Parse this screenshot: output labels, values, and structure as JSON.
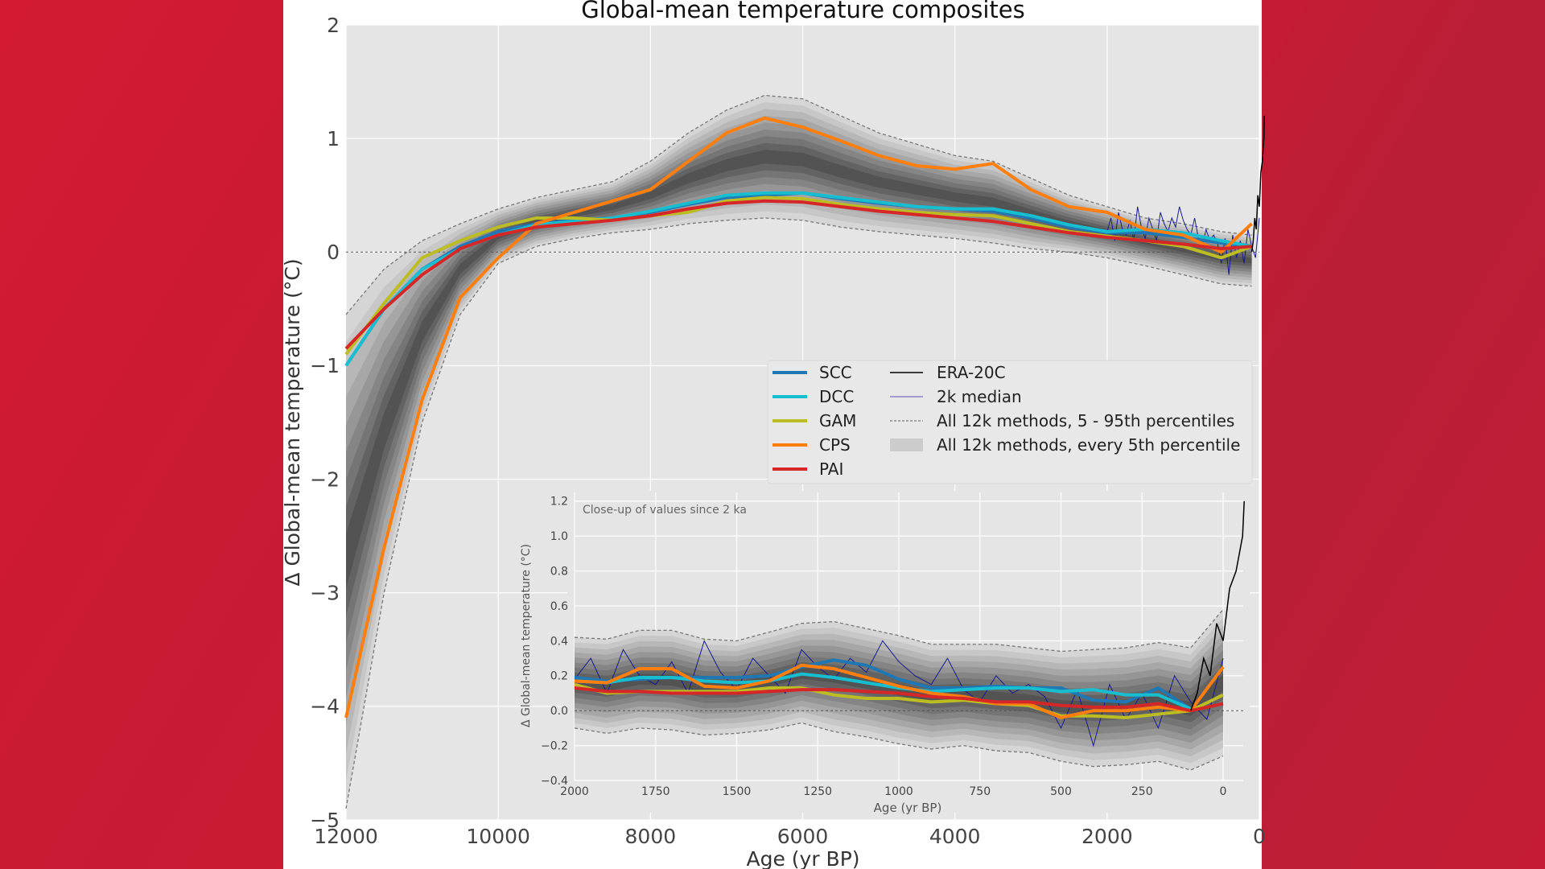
{
  "chart_data": [
    {
      "type": "line",
      "title": "Global-mean temperature composites",
      "xlabel": "Age (yr BP)",
      "ylabel": "Δ Global-mean temperature (°C)",
      "xlim": [
        12000,
        0
      ],
      "ylim": [
        -5,
        2
      ],
      "grid": true,
      "legend_position": "center-right",
      "x_ticks": [
        "12000",
        "10000",
        "8000",
        "6000",
        "4000",
        "2000",
        "0"
      ],
      "y_ticks": [
        "2",
        "1",
        "0",
        "−1",
        "−2",
        "−3",
        "−4",
        "−5"
      ],
      "x": [
        12000,
        11500,
        11000,
        10500,
        10000,
        9500,
        9000,
        8500,
        8000,
        7500,
        7000,
        6500,
        6000,
        5500,
        5000,
        4500,
        4000,
        3500,
        3000,
        2500,
        2000,
        1500,
        1000,
        500,
        100
      ],
      "series": [
        {
          "name": "SCC",
          "color": "#1f77b4",
          "values": [
            -1.0,
            -0.5,
            -0.15,
            0.05,
            0.18,
            0.25,
            0.28,
            0.3,
            0.35,
            0.42,
            0.48,
            0.5,
            0.52,
            0.47,
            0.43,
            0.4,
            0.38,
            0.36,
            0.3,
            0.22,
            0.17,
            0.17,
            0.13,
            0.08,
            0.05
          ]
        },
        {
          "name": "DCC",
          "color": "#17becf",
          "values": [
            -1.0,
            -0.5,
            -0.15,
            0.03,
            0.15,
            0.24,
            0.27,
            0.3,
            0.36,
            0.43,
            0.5,
            0.52,
            0.52,
            0.48,
            0.44,
            0.4,
            0.38,
            0.38,
            0.32,
            0.24,
            0.18,
            0.2,
            0.17,
            0.1,
            0.05
          ]
        },
        {
          "name": "GAM",
          "color": "#bcbd22",
          "values": [
            -0.9,
            -0.45,
            -0.05,
            0.1,
            0.22,
            0.3,
            0.3,
            0.28,
            0.32,
            0.35,
            0.45,
            0.48,
            0.47,
            0.42,
            0.38,
            0.35,
            0.33,
            0.32,
            0.25,
            0.18,
            0.14,
            0.1,
            0.05,
            -0.05,
            0.05
          ]
        },
        {
          "name": "CPS",
          "color": "#ff7f0e",
          "values": [
            -4.1,
            -2.6,
            -1.3,
            -0.4,
            -0.05,
            0.25,
            0.35,
            0.45,
            0.55,
            0.8,
            1.05,
            1.18,
            1.1,
            0.98,
            0.85,
            0.76,
            0.73,
            0.78,
            0.55,
            0.4,
            0.35,
            0.2,
            0.15,
            0.0,
            0.25
          ]
        },
        {
          "name": "PAI",
          "color": "#d62728",
          "values": [
            -0.85,
            -0.5,
            -0.2,
            0.03,
            0.15,
            0.22,
            0.25,
            0.28,
            0.32,
            0.38,
            0.43,
            0.45,
            0.44,
            0.4,
            0.36,
            0.33,
            0.3,
            0.27,
            0.22,
            0.17,
            0.13,
            0.1,
            0.07,
            0.03,
            0.05
          ]
        }
      ],
      "band_5th": [
        -4.9,
        -3.0,
        -1.5,
        -0.55,
        -0.1,
        0.05,
        0.12,
        0.17,
        0.2,
        0.25,
        0.28,
        0.3,
        0.28,
        0.22,
        0.18,
        0.15,
        0.12,
        0.08,
        0.03,
        0.0,
        -0.05,
        -0.12,
        -0.2,
        -0.28,
        -0.3
      ],
      "band_95th": [
        -0.55,
        -0.15,
        0.1,
        0.25,
        0.38,
        0.48,
        0.55,
        0.62,
        0.8,
        1.05,
        1.25,
        1.38,
        1.35,
        1.2,
        1.05,
        0.95,
        0.85,
        0.8,
        0.65,
        0.5,
        0.4,
        0.3,
        0.25,
        0.18,
        0.15
      ],
      "era20c": {
        "name": "ERA-20C",
        "color": "#000000",
        "x": [
          100,
          80,
          60,
          40,
          20,
          0,
          -20,
          -40,
          -60,
          -65
        ],
        "values": [
          0.0,
          0.1,
          0.3,
          0.2,
          0.5,
          0.4,
          0.7,
          0.8,
          1.0,
          1.2
        ]
      },
      "median_2k": {
        "name": "2k median",
        "color": "#1a1a8c",
        "x_start": 2000,
        "x_step": 50,
        "values": [
          0.18,
          0.3,
          0.1,
          0.35,
          0.2,
          0.15,
          0.28,
          0.1,
          0.4,
          0.22,
          0.12,
          0.3,
          0.2,
          0.1,
          0.35,
          0.25,
          0.18,
          0.3,
          0.22,
          0.4,
          0.28,
          0.2,
          0.15,
          0.3,
          0.12,
          0.05,
          0.2,
          0.1,
          0.15,
          0.08,
          -0.1,
          0.12,
          -0.2,
          0.15,
          -0.05,
          0.1,
          -0.1,
          0.2,
          0.05,
          -0.05,
          0.3
        ]
      },
      "legend": [
        "SCC",
        "DCC",
        "GAM",
        "CPS",
        "PAI",
        "ERA-20C",
        "2k median",
        "All 12k methods, 5 - 95th percentiles",
        "All 12k methods, every 5th percentile"
      ]
    },
    {
      "type": "line",
      "title": "",
      "annotation": "Close-up of values since 2 ka",
      "xlabel": "Age (yr BP)",
      "ylabel": "Δ Global-mean temperature (°C)",
      "xlim": [
        2000,
        -62
      ],
      "ylim": [
        -0.4,
        1.25
      ],
      "grid": true,
      "x_ticks": [
        "2000",
        "1750",
        "1500",
        "1250",
        "1000",
        "750",
        "500",
        "250",
        "0"
      ],
      "y_ticks": [
        "1.2",
        "1.0",
        "0.8",
        "0.6",
        "0.4",
        "0.2",
        "0.0",
        "−0.2",
        "−0.4"
      ],
      "x": [
        2000,
        1900,
        1800,
        1700,
        1600,
        1500,
        1400,
        1300,
        1200,
        1100,
        1000,
        900,
        800,
        700,
        600,
        500,
        400,
        300,
        200,
        100,
        0
      ],
      "series": [
        {
          "name": "SCC",
          "color": "#1f77b4",
          "values": [
            0.19,
            0.17,
            0.18,
            0.19,
            0.19,
            0.19,
            0.2,
            0.25,
            0.29,
            0.26,
            0.18,
            0.13,
            0.13,
            0.14,
            0.13,
            0.13,
            0.06,
            0.05,
            0.13,
            0.01,
            null
          ]
        },
        {
          "name": "DCC",
          "color": "#17becf",
          "values": [
            0.17,
            0.16,
            0.19,
            0.19,
            0.17,
            0.16,
            0.17,
            0.21,
            0.19,
            0.16,
            0.13,
            0.11,
            0.12,
            0.13,
            0.13,
            0.11,
            0.12,
            0.09,
            0.09,
            0.01,
            null
          ]
        },
        {
          "name": "GAM",
          "color": "#bcbd22",
          "values": [
            0.15,
            0.1,
            0.11,
            0.11,
            0.11,
            0.11,
            0.13,
            0.13,
            0.09,
            0.07,
            0.07,
            0.05,
            0.06,
            0.04,
            0.03,
            -0.03,
            -0.03,
            -0.04,
            -0.02,
            0.0,
            0.09
          ]
        },
        {
          "name": "CPS",
          "color": "#ff7f0e",
          "values": [
            0.17,
            0.16,
            0.24,
            0.24,
            0.14,
            0.13,
            0.17,
            0.26,
            0.24,
            0.19,
            0.14,
            0.1,
            0.08,
            0.04,
            0.04,
            -0.04,
            0.0,
            0.0,
            0.02,
            0.0,
            0.25
          ]
        },
        {
          "name": "PAI",
          "color": "#d62728",
          "values": [
            0.13,
            0.11,
            0.11,
            0.1,
            0.1,
            0.1,
            0.11,
            0.12,
            0.12,
            0.11,
            0.1,
            0.08,
            0.07,
            0.05,
            0.05,
            0.03,
            0.02,
            0.02,
            0.04,
            0.0,
            0.04
          ]
        }
      ],
      "band_5th": [
        -0.1,
        -0.13,
        -0.1,
        -0.11,
        -0.14,
        -0.13,
        -0.11,
        -0.07,
        -0.12,
        -0.15,
        -0.19,
        -0.22,
        -0.2,
        -0.23,
        -0.24,
        -0.29,
        -0.32,
        -0.31,
        -0.29,
        -0.34,
        -0.26
      ],
      "band_95th": [
        0.42,
        0.41,
        0.46,
        0.46,
        0.41,
        0.4,
        0.45,
        0.5,
        0.51,
        0.47,
        0.43,
        0.38,
        0.38,
        0.38,
        0.36,
        0.34,
        0.35,
        0.36,
        0.39,
        0.36,
        0.58
      ]
    }
  ]
}
